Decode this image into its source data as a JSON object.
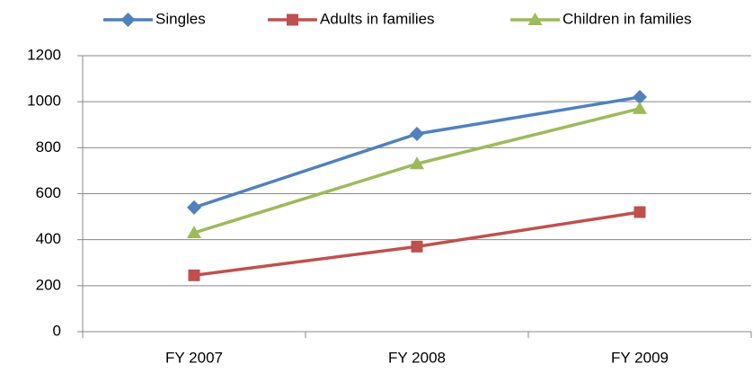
{
  "chart_data": {
    "type": "line",
    "categories": [
      "FY 2007",
      "FY 2008",
      "FY 2009"
    ],
    "series": [
      {
        "name": "Singles",
        "color": "#4f81bd",
        "marker": "diamond",
        "values": [
          540,
          860,
          1020
        ]
      },
      {
        "name": "Adults in families",
        "color": "#c0504d",
        "marker": "square",
        "values": [
          245,
          370,
          520
        ]
      },
      {
        "name": "Children in families",
        "color": "#9bbb59",
        "marker": "triangle",
        "values": [
          430,
          730,
          970
        ]
      }
    ],
    "ylim": [
      0,
      1200
    ],
    "yticks": [
      0,
      200,
      400,
      600,
      800,
      1000,
      1200
    ],
    "grid": true,
    "legend": "top"
  }
}
